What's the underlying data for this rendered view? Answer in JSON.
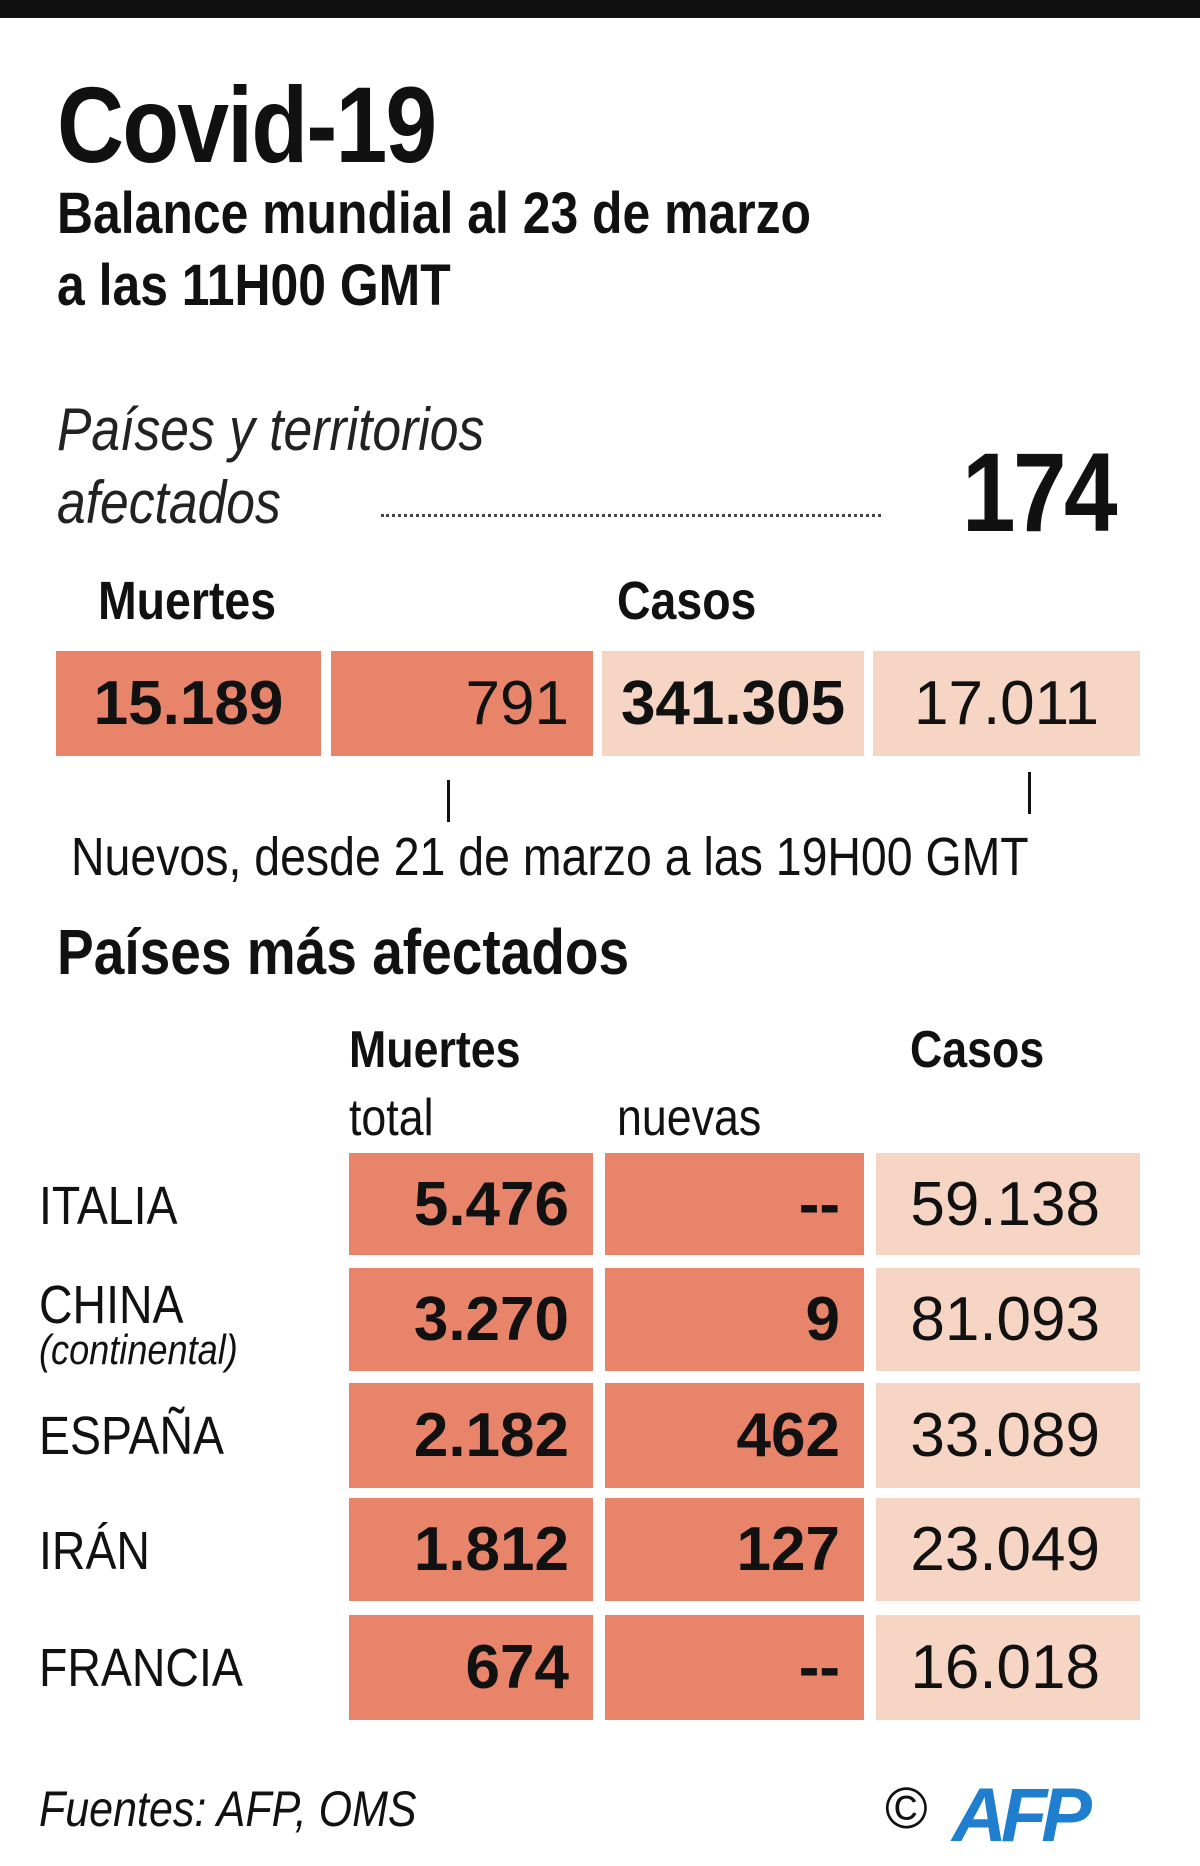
{
  "title": "Covid-19",
  "subtitle_lines": [
    "Balance mundial al 23 de marzo",
    "a las 11H00 GMT"
  ],
  "affected": {
    "label_lines": [
      "Países y territorios",
      "afectados"
    ],
    "value": "174"
  },
  "totals": {
    "deaths_header": "Muertes",
    "cases_header": "Casos",
    "deaths_total": "15.189",
    "deaths_new": "791",
    "cases_total": "341.305",
    "cases_new": "17.011",
    "new_note": "Nuevos, desde 21 de marzo a las 19H00 GMT"
  },
  "chart_data": {
    "type": "table",
    "title": "Países más afectados",
    "columns": {
      "deaths": "Muertes",
      "total": "total",
      "new": "nuevas",
      "cases": "Casos"
    },
    "rows": [
      {
        "country": "ITALIA",
        "note": "",
        "deaths_total": "5.476",
        "deaths_new": "--",
        "cases": "59.138"
      },
      {
        "country": "CHINA",
        "note": "(continental)",
        "deaths_total": "3.270",
        "deaths_new": "9",
        "cases": "81.093"
      },
      {
        "country": "ESPAÑA",
        "note": "",
        "deaths_total": "2.182",
        "deaths_new": "462",
        "cases": "33.089"
      },
      {
        "country": "IRÁN",
        "note": "",
        "deaths_total": "1.812",
        "deaths_new": "127",
        "cases": "23.049"
      },
      {
        "country": "FRANCIA",
        "note": "",
        "deaths_total": "674",
        "deaths_new": "--",
        "cases": "16.018"
      }
    ]
  },
  "colors": {
    "deaths": "#e8846a",
    "cases": "#f7d5c5",
    "logo": "#1f7fce"
  },
  "footer": {
    "sources": "Fuentes: AFP, OMS",
    "copyright": "©",
    "logo": "AFP"
  }
}
